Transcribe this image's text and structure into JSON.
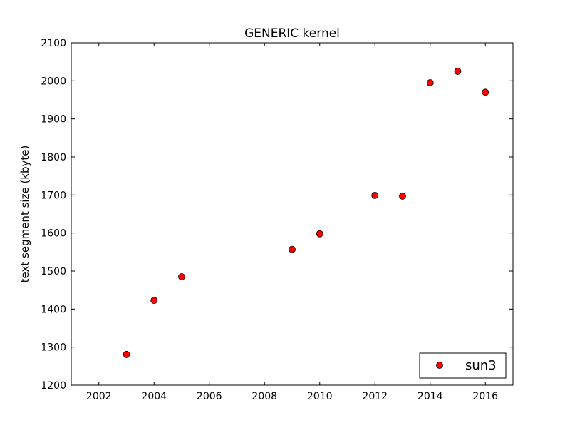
{
  "chart_data": {
    "type": "scatter",
    "title": "GENERIC kernel",
    "xlabel": "",
    "ylabel": "text segment size (kbyte)",
    "xlim": [
      2001,
      2017
    ],
    "ylim": [
      1200,
      2100
    ],
    "xticks": [
      2002,
      2004,
      2006,
      2008,
      2010,
      2012,
      2014,
      2016
    ],
    "yticks": [
      1200,
      1300,
      1400,
      1500,
      1600,
      1700,
      1800,
      1900,
      2000,
      2100
    ],
    "grid": false,
    "legend_position": "lower-right",
    "series": [
      {
        "name": "sun3",
        "color": "#ff0000",
        "marker": "circle",
        "x": [
          2003,
          2004,
          2005,
          2009,
          2010,
          2012,
          2013,
          2014,
          2015,
          2016
        ],
        "y": [
          1281,
          1423,
          1485,
          1557,
          1598,
          1699,
          1697,
          1995,
          2025,
          1970
        ]
      }
    ]
  }
}
